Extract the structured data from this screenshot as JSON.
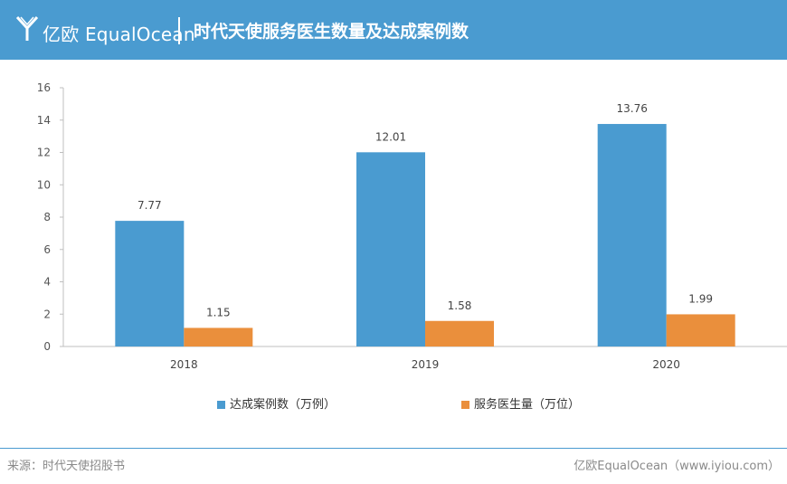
{
  "header": {
    "logo_text": "亿欧 EqualOcean",
    "title": "时代天使服务医生数量及达成案例数"
  },
  "colors": {
    "header_bg": "#4a9bd0",
    "cases": "#4a9bd0",
    "doctors": "#ea8f3c"
  },
  "chart_data": {
    "type": "bar",
    "title": "时代天使服务医生数量及达成案例数",
    "categories": [
      "2018",
      "2019",
      "2020"
    ],
    "series": [
      {
        "name": "达成案例数（万例）",
        "values": [
          7.77,
          12.01,
          13.76
        ],
        "labels": [
          "7.77",
          "12.01",
          "13.76"
        ]
      },
      {
        "name": "服务医生量（万位）",
        "values": [
          1.15,
          1.58,
          1.99
        ],
        "labels": [
          "1.15",
          "1.58",
          "1.99"
        ]
      }
    ],
    "xlabel": "",
    "ylabel": "",
    "ylim": [
      0,
      16
    ],
    "yticks": [
      "0",
      "2",
      "4",
      "6",
      "8",
      "10",
      "12",
      "14",
      "16"
    ],
    "grid": false,
    "legend_position": "bottom"
  },
  "footer": {
    "source": "来源：时代天使招股书",
    "credit": "亿欧EqualOcean（www.iyiou.com）"
  }
}
